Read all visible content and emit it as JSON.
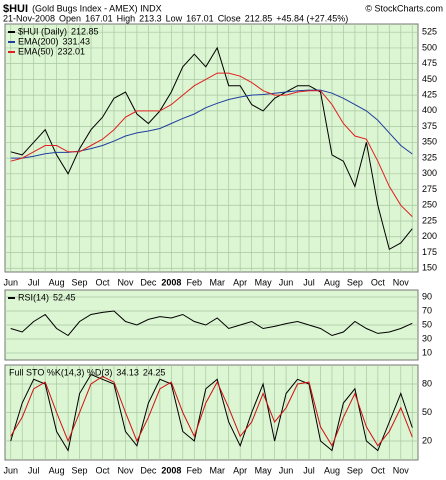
{
  "header": {
    "symbol": "$HUI",
    "title": "(Gold Bugs Index - AMEX) INDX",
    "credit": "© StockCharts.com",
    "date": "21-Nov-2008",
    "open_label": "Open",
    "open": 167.01,
    "high_label": "High",
    "high": 213.3,
    "low_label": "Low",
    "low": 167.01,
    "close_label": "Close",
    "close": 212.85,
    "change": "+45.84 (+27.45%)"
  },
  "chart_data": [
    {
      "type": "line",
      "background": "#dcf5d2",
      "categories": [
        "Jun",
        null,
        "Jul",
        null,
        "Aug",
        null,
        "Sep",
        null,
        "Oct",
        null,
        "Nov",
        null,
        "Dec",
        null,
        "2008",
        null,
        "Feb",
        null,
        "Mar",
        null,
        "Apr",
        null,
        "May",
        null,
        "Jun",
        null,
        "Jul",
        null,
        "Aug",
        null,
        "Sep",
        null,
        "Oct",
        null,
        "Nov",
        null
      ],
      "ylim": [
        144,
        538
      ],
      "yticks": [
        150,
        175,
        200,
        225,
        250,
        275,
        300,
        325,
        350,
        375,
        400,
        425,
        450,
        475,
        500,
        525
      ],
      "grid": true,
      "series": [
        {
          "name": "$HUI (Daily)",
          "color": "#000000",
          "values": [
            335,
            330,
            350,
            370,
            330,
            300,
            340,
            370,
            390,
            420,
            430,
            395,
            380,
            400,
            430,
            470,
            490,
            470,
            500,
            440,
            440,
            410,
            400,
            420,
            430,
            440,
            440,
            430,
            330,
            320,
            280,
            350,
            250,
            180,
            190,
            212.85
          ]
        },
        {
          "name": "EMA(200)",
          "color": "#1f3fa0",
          "values": [
            325,
            325,
            328,
            332,
            334,
            334,
            336,
            340,
            345,
            352,
            360,
            365,
            368,
            372,
            380,
            388,
            395,
            405,
            412,
            418,
            422,
            425,
            426,
            428,
            430,
            432,
            433,
            433,
            428,
            420,
            410,
            400,
            385,
            365,
            345,
            331.43
          ]
        },
        {
          "name": "EMA(50)",
          "color": "#e02020",
          "values": [
            320,
            325,
            335,
            345,
            345,
            335,
            335,
            345,
            355,
            370,
            390,
            400,
            400,
            400,
            410,
            425,
            440,
            450,
            460,
            460,
            455,
            445,
            432,
            425,
            425,
            430,
            432,
            432,
            410,
            380,
            360,
            355,
            320,
            280,
            250,
            232.01
          ]
        }
      ]
    },
    {
      "type": "line",
      "background": "#dcf5d2",
      "ylim": [
        0,
        100
      ],
      "yticks": [
        10,
        30,
        50,
        70,
        90
      ],
      "grid": true,
      "series": [
        {
          "name": "RSI(14)",
          "color": "#000000",
          "values": [
            45,
            40,
            55,
            65,
            45,
            35,
            55,
            65,
            68,
            70,
            55,
            50,
            58,
            62,
            60,
            65,
            55,
            50,
            60,
            45,
            50,
            55,
            45,
            48,
            52,
            55,
            50,
            45,
            35,
            40,
            55,
            45,
            38,
            40,
            45,
            52.45
          ]
        }
      ]
    },
    {
      "type": "line",
      "background": "#dcf5d2",
      "title": "Full STO %K(14,3) %D(3)",
      "categories": [
        "Jun",
        null,
        "Jul",
        null,
        "Aug",
        null,
        "Sep",
        null,
        "Oct",
        null,
        "Nov",
        null,
        "Dec",
        null,
        "2008",
        null,
        "Feb",
        null,
        "Mar",
        null,
        "Apr",
        null,
        "May",
        null,
        "Jun",
        null,
        "Jul",
        null,
        "Aug",
        null,
        "Sep",
        null,
        "Oct",
        null,
        "Nov",
        null
      ],
      "ylim": [
        0,
        100
      ],
      "yticks": [
        20,
        50,
        80
      ],
      "grid": true,
      "series": [
        {
          "color": "#000000",
          "values": [
            20,
            60,
            85,
            80,
            30,
            10,
            70,
            90,
            85,
            80,
            30,
            15,
            60,
            85,
            80,
            30,
            20,
            75,
            85,
            40,
            15,
            50,
            80,
            20,
            70,
            85,
            80,
            20,
            10,
            60,
            75,
            20,
            10,
            40,
            70,
            34.13
          ]
        },
        {
          "color": "#d01010",
          "values": [
            25,
            45,
            75,
            82,
            50,
            20,
            50,
            80,
            88,
            82,
            50,
            20,
            45,
            75,
            82,
            50,
            25,
            60,
            82,
            55,
            25,
            40,
            70,
            40,
            55,
            80,
            82,
            35,
            15,
            45,
            70,
            35,
            15,
            30,
            55,
            24.25
          ]
        }
      ]
    }
  ]
}
